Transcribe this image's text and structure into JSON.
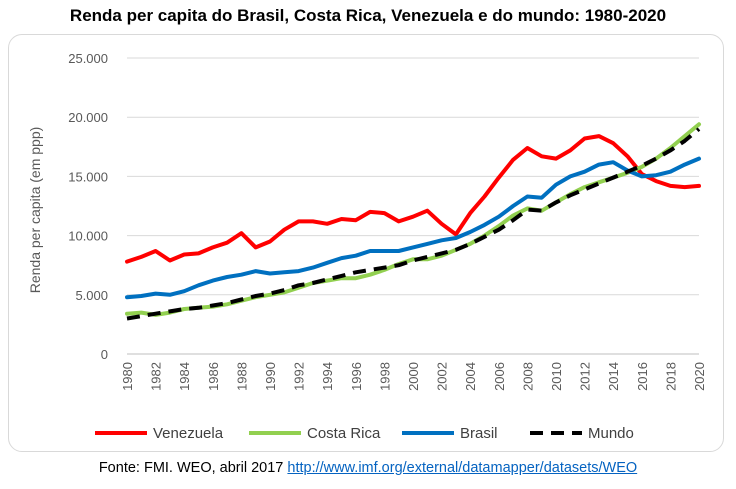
{
  "page": {
    "title": "Renda per capita do Brasil, Costa Rica, Venezuela e do mundo: 1980-2020",
    "source_prefix": "Fonte: FMI. WEO, abril 2017 ",
    "source_link": "http://www.imf.org/external/datamapper/datasets/WEO"
  },
  "chart_data": {
    "type": "line",
    "title": "Renda per capita do Brasil, Costa Rica, Venezuela e do mundo: 1980-2020",
    "xlabel": "",
    "ylabel": "Renda per capita (em ppp)",
    "ylim": [
      0,
      25000
    ],
    "yticks": [
      0,
      5000,
      10000,
      15000,
      20000,
      25000
    ],
    "ytick_labels": [
      "0",
      "5.000",
      "10.000",
      "15.000",
      "20.000",
      "25.000"
    ],
    "xtick_labels": [
      "1980",
      "1982",
      "1984",
      "1986",
      "1988",
      "1990",
      "1992",
      "1994",
      "1996",
      "1998",
      "2000",
      "2002",
      "2004",
      "2006",
      "2008",
      "2010",
      "2012",
      "2014",
      "2016",
      "2018",
      "2020"
    ],
    "grid": true,
    "legend": "bottom",
    "x": [
      1980,
      1981,
      1982,
      1983,
      1984,
      1985,
      1986,
      1987,
      1988,
      1989,
      1990,
      1991,
      1992,
      1993,
      1994,
      1995,
      1996,
      1997,
      1998,
      1999,
      2000,
      2001,
      2002,
      2003,
      2004,
      2005,
      2006,
      2007,
      2008,
      2009,
      2010,
      2011,
      2012,
      2013,
      2014,
      2015,
      2016,
      2017,
      2018,
      2019,
      2020
    ],
    "series": [
      {
        "name": "Venezuela",
        "color": "#ff0000",
        "dash": "solid",
        "values": [
          7800,
          8200,
          8700,
          7900,
          8400,
          8500,
          9000,
          9400,
          10200,
          9000,
          9500,
          10500,
          11200,
          11200,
          11000,
          11400,
          11300,
          12000,
          11900,
          11200,
          11600,
          12100,
          11000,
          10100,
          11900,
          13300,
          14900,
          16400,
          17400,
          16700,
          16500,
          17200,
          18200,
          18400,
          17800,
          16700,
          15200,
          14600,
          14200,
          14100,
          14200
        ]
      },
      {
        "name": "Costa Rica",
        "color": "#92d050",
        "dash": "solid",
        "values": [
          3400,
          3500,
          3300,
          3500,
          3800,
          3900,
          4000,
          4200,
          4500,
          4800,
          5000,
          5200,
          5600,
          6000,
          6200,
          6400,
          6400,
          6700,
          7100,
          7600,
          8000,
          8000,
          8300,
          8800,
          9300,
          10000,
          10800,
          11700,
          12300,
          12100,
          12800,
          13500,
          14100,
          14500,
          14900,
          15300,
          15800,
          16500,
          17400,
          18400,
          19400
        ]
      },
      {
        "name": "Brasil",
        "color": "#0070c0",
        "dash": "solid",
        "values": [
          4800,
          4900,
          5100,
          5000,
          5300,
          5800,
          6200,
          6500,
          6700,
          7000,
          6800,
          6900,
          7000,
          7300,
          7700,
          8100,
          8300,
          8700,
          8700,
          8700,
          9000,
          9300,
          9600,
          9800,
          10300,
          10900,
          11600,
          12500,
          13300,
          13200,
          14300,
          15000,
          15400,
          16000,
          16200,
          15500,
          15000,
          15100,
          15400,
          16000,
          16500
        ]
      },
      {
        "name": "Mundo",
        "color": "#000000",
        "dash": "dashed",
        "values": [
          3000,
          3200,
          3400,
          3600,
          3800,
          3900,
          4100,
          4300,
          4600,
          4900,
          5100,
          5400,
          5800,
          6000,
          6300,
          6600,
          6900,
          7100,
          7300,
          7500,
          7900,
          8200,
          8500,
          8800,
          9300,
          9900,
          10500,
          11300,
          12200,
          12100,
          12800,
          13400,
          13900,
          14400,
          14900,
          15400,
          15900,
          16500,
          17200,
          18000,
          19000
        ]
      }
    ]
  }
}
